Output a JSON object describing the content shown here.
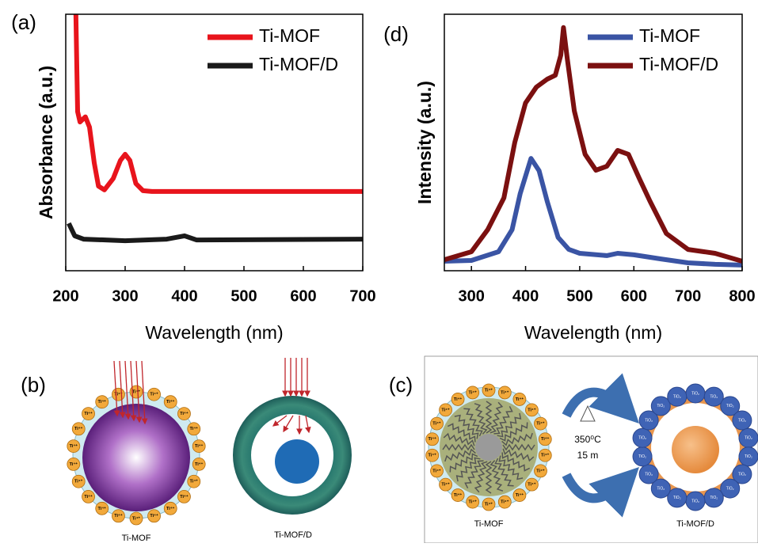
{
  "chart_data": [
    {
      "type": "line",
      "panel_label": "(a)",
      "x_label": "Wavelength (nm)",
      "y_label": "Absorbance (a.u.)",
      "xlim": [
        200,
        700
      ],
      "xticks": [
        200,
        300,
        400,
        500,
        600,
        700
      ],
      "ylim": [
        0,
        10
      ],
      "legend": "upper right",
      "series": [
        {
          "name": "Ti-MOF",
          "color": "#e8141c",
          "x": [
            217,
            220,
            224,
            233,
            240,
            248,
            255,
            265,
            280,
            292,
            300,
            308,
            318,
            330,
            345,
            700
          ],
          "values": [
            10,
            6.2,
            5.8,
            6.0,
            5.6,
            4.2,
            3.3,
            3.15,
            3.6,
            4.3,
            4.54,
            4.3,
            3.4,
            3.12,
            3.09,
            3.09
          ]
        },
        {
          "name": "Ti-MOF/D",
          "color": "#1a1a1a",
          "x": [
            205,
            215,
            230,
            300,
            370,
            400,
            420,
            700
          ],
          "values": [
            1.85,
            1.36,
            1.23,
            1.17,
            1.23,
            1.36,
            1.2,
            1.23
          ]
        }
      ]
    },
    {
      "type": "line",
      "panel_label": "(d)",
      "x_label": "Wavelength (nm)",
      "y_label": "Intensity (a.u.)",
      "xlim": [
        250,
        800
      ],
      "xticks": [
        300,
        400,
        500,
        600,
        700,
        800
      ],
      "ylim": [
        0,
        10
      ],
      "legend": "upper right",
      "series": [
        {
          "name": "Ti-MOF",
          "color": "#3a54a4",
          "x": [
            250,
            300,
            350,
            375,
            390,
            410,
            425,
            440,
            460,
            480,
            500,
            550,
            570,
            600,
            650,
            700,
            750,
            800
          ],
          "values": [
            0.37,
            0.4,
            0.74,
            1.6,
            3.0,
            4.38,
            3.9,
            2.7,
            1.3,
            0.83,
            0.68,
            0.59,
            0.68,
            0.62,
            0.46,
            0.31,
            0.25,
            0.22
          ]
        },
        {
          "name": "Ti-MOF/D",
          "color": "#7b1010",
          "x": [
            250,
            300,
            330,
            360,
            380,
            400,
            420,
            440,
            455,
            465,
            470,
            477,
            490,
            510,
            530,
            550,
            570,
            590,
            610,
            630,
            660,
            700,
            750,
            800
          ],
          "values": [
            0.43,
            0.74,
            1.6,
            2.84,
            5.0,
            6.54,
            7.16,
            7.47,
            7.62,
            8.4,
            9.48,
            8.27,
            6.23,
            4.54,
            3.92,
            4.07,
            4.69,
            4.54,
            3.6,
            2.7,
            1.45,
            0.83,
            0.68,
            0.37
          ]
        }
      ]
    }
  ],
  "diagrams": {
    "b": {
      "panel_label": "(b)",
      "left_caption": "Ti-MOF",
      "right_caption": "Ti-MOF/D",
      "ion_label": "Ti⁴⁺"
    },
    "c": {
      "panel_label": "(c)",
      "left_caption": "Ti-MOF",
      "right_caption": "Ti-MOF/D",
      "ion_label": "Ti⁴⁺",
      "temperature": "350⁰C",
      "time": "15 m",
      "particle_label": "TiO₂"
    }
  }
}
